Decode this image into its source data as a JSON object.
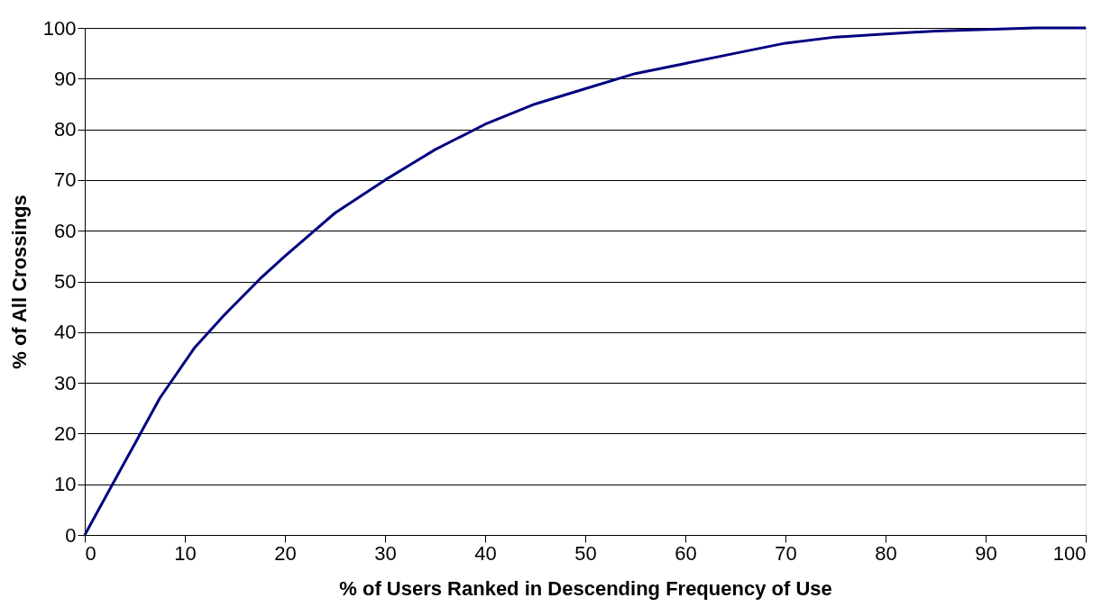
{
  "chart_data": {
    "type": "line",
    "xlabel": "% of Users Ranked in Descending Frequency of Use",
    "ylabel": "% of All Crossings",
    "x": [
      0,
      2.5,
      5,
      7.5,
      11,
      14,
      17.5,
      20,
      25,
      30,
      32.5,
      35,
      37.5,
      40,
      42.5,
      45,
      50,
      55,
      60,
      65,
      70,
      75,
      80,
      85,
      90,
      95,
      100
    ],
    "series": [
      {
        "color": "#000080",
        "values": [
          0,
          9,
          18,
          27,
          37,
          43.5,
          50.5,
          55,
          63.5,
          70,
          73,
          76,
          78.5,
          81,
          83,
          85,
          88,
          91,
          93,
          95,
          97,
          98.2,
          98.8,
          99.4,
          99.7,
          100,
          100
        ]
      }
    ],
    "xlim": [
      0,
      100
    ],
    "xticks": [
      0,
      10,
      20,
      30,
      40,
      50,
      60,
      70,
      80,
      90,
      100
    ],
    "ylim": [
      0,
      100
    ],
    "yticks": [
      0,
      10,
      20,
      30,
      40,
      50,
      60,
      70,
      80,
      90,
      100
    ],
    "grid": "y",
    "marker": "none",
    "line_style": "solid",
    "legend": false
  }
}
